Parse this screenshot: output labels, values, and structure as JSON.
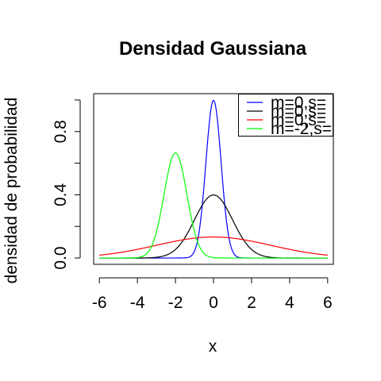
{
  "chart_data": {
    "type": "line",
    "title": "Densidad Gaussiana",
    "xlabel": "x",
    "ylabel": "densidad de probabilidad",
    "xlim": [
      -6.3,
      6.3
    ],
    "ylim": [
      -0.04,
      1.04
    ],
    "x_ticks": [
      -6,
      -4,
      -2,
      0,
      2,
      4,
      6
    ],
    "x_tick_labels": [
      "-6",
      "-4",
      "-2",
      "0",
      "2",
      "4",
      "6"
    ],
    "y_ticks": [
      0,
      0.2,
      0.4,
      0.6,
      0.8,
      1.0
    ],
    "y_tick_labels": [
      "0.0",
      "",
      "0.4",
      "",
      "0.8",
      ""
    ],
    "grid": false,
    "legend_position": "top-right",
    "x_range": [
      -6,
      6
    ],
    "series": [
      {
        "name": "m=0,s=",
        "mean": 0,
        "sd": 0.4,
        "color": "#0000FF"
      },
      {
        "name": "m=0,s=",
        "mean": 0,
        "sd": 1,
        "color": "#000000"
      },
      {
        "name": "m=0,s=",
        "mean": 0,
        "sd": 3,
        "color": "#FF0000"
      },
      {
        "name": "m=-2,s=",
        "mean": -2,
        "sd": 0.6,
        "color": "#00FF00"
      }
    ]
  }
}
